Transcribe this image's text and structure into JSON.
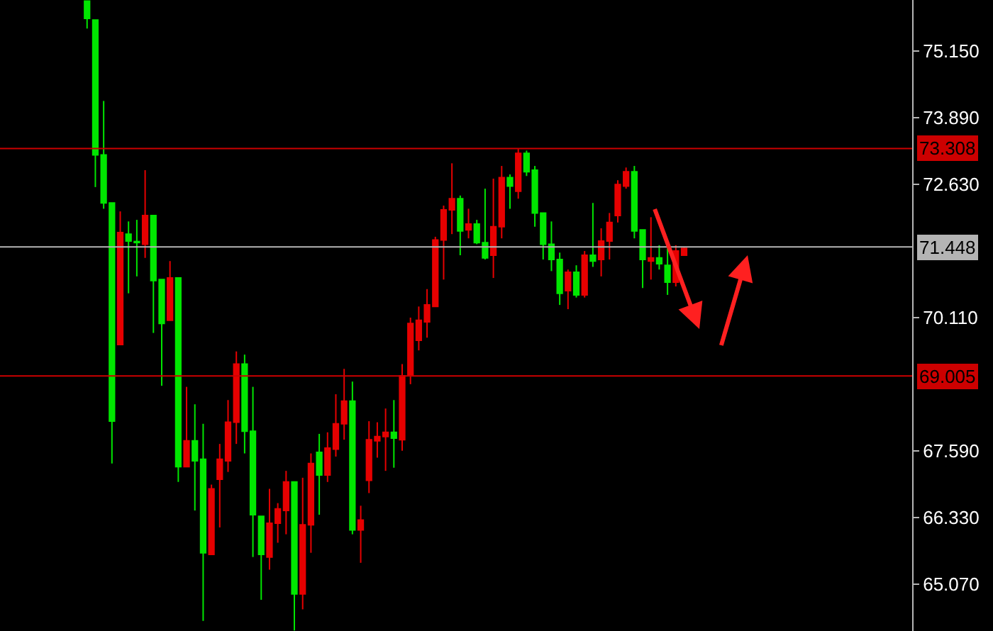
{
  "chart_data": {
    "type": "candlestick",
    "categories": [
      null,
      null,
      null,
      null,
      null,
      null,
      null,
      null,
      null,
      null,
      null,
      null,
      null,
      null,
      null,
      null,
      null,
      null,
      null,
      null,
      null,
      null,
      null,
      null,
      null,
      null,
      null,
      null,
      null,
      null,
      null,
      null,
      null,
      null,
      null,
      null,
      null,
      null,
      null,
      null,
      null,
      null,
      null,
      null,
      null,
      null,
      null,
      null,
      null,
      null,
      null,
      null,
      null,
      null,
      null,
      null,
      null,
      null,
      null,
      null,
      null,
      null,
      null,
      null,
      null,
      null,
      null,
      null,
      null,
      null,
      null,
      null,
      null,
      null,
      null,
      null,
      null,
      null,
      null,
      null,
      null,
      null,
      null,
      null,
      null,
      null,
      null,
      null,
      null,
      null,
      null,
      null,
      null,
      null,
      null,
      null,
      null,
      null,
      null,
      null,
      null,
      null,
      null,
      null,
      null,
      null,
      null,
      null,
      null,
      null
    ],
    "ohlc": [
      null,
      null,
      null,
      null,
      null,
      null,
      null,
      null,
      null,
      null,
      [
        76.1,
        76.1,
        75.58,
        75.77
      ],
      [
        75.74,
        75.74,
        72.58,
        73.19
      ],
      [
        73.19,
        74.21,
        72.17,
        72.28
      ],
      [
        72.28,
        72.28,
        67.35,
        68.15
      ],
      [
        69.6,
        72.12,
        69.6,
        71.72
      ],
      [
        71.69,
        71.93,
        70.57,
        71.56
      ],
      [
        71.55,
        71.96,
        70.89,
        71.53
      ],
      [
        71.5,
        72.9,
        71.24,
        72.04
      ],
      [
        72.04,
        72.04,
        69.82,
        70.81
      ],
      [
        70.83,
        70.83,
        68.82,
        70.0
      ],
      [
        70.06,
        71.18,
        70.06,
        70.86
      ],
      [
        70.86,
        70.86,
        67.0,
        67.29
      ],
      [
        67.29,
        68.8,
        67.29,
        67.78
      ],
      [
        67.78,
        68.47,
        66.46,
        67.4
      ],
      [
        67.43,
        68.1,
        64.37,
        65.66
      ],
      [
        65.63,
        66.95,
        65.63,
        66.87
      ],
      [
        67.05,
        67.72,
        66.14,
        67.43
      ],
      [
        67.4,
        68.55,
        67.19,
        68.13
      ],
      [
        68.13,
        69.47,
        67.72,
        69.23
      ],
      [
        69.23,
        69.41,
        67.54,
        67.96
      ],
      [
        67.96,
        68.8,
        65.58,
        66.38
      ],
      [
        66.35,
        66.35,
        64.77,
        65.63
      ],
      [
        65.58,
        66.87,
        65.34,
        66.22
      ],
      [
        66.22,
        66.6,
        65.85,
        66.49
      ],
      [
        66.46,
        67.21,
        66.01,
        67.0
      ],
      [
        67.0,
        67.0,
        64.19,
        64.88
      ],
      [
        64.88,
        67.08,
        64.59,
        66.19
      ],
      [
        66.19,
        67.54,
        65.66,
        67.35
      ],
      [
        67.56,
        67.91,
        66.38,
        67.13
      ],
      [
        67.13,
        67.94,
        67.0,
        67.64
      ],
      [
        67.62,
        68.66,
        67.48,
        68.1
      ],
      [
        68.1,
        69.14,
        67.8,
        68.53
      ],
      [
        68.53,
        68.9,
        66.01,
        66.09
      ],
      [
        66.09,
        66.55,
        65.47,
        66.28
      ],
      [
        67.03,
        68.15,
        66.79,
        67.8
      ],
      [
        67.78,
        68.13,
        67.46,
        67.86
      ],
      [
        67.86,
        68.39,
        67.21,
        67.94
      ],
      [
        67.94,
        68.55,
        67.27,
        67.83
      ],
      [
        67.8,
        69.23,
        67.59,
        69.01
      ],
      [
        69.01,
        70.11,
        68.85,
        70.0
      ],
      [
        69.68,
        70.32,
        69.49,
        70.06
      ],
      [
        70.03,
        70.65,
        69.73,
        70.35
      ],
      [
        70.32,
        71.64,
        70.32,
        71.58
      ],
      [
        71.58,
        72.23,
        70.83,
        72.15
      ],
      [
        72.15,
        73.03,
        71.69,
        72.36
      ],
      [
        72.36,
        72.42,
        71.29,
        71.75
      ],
      [
        71.77,
        72.17,
        71.61,
        71.88
      ],
      [
        71.88,
        71.96,
        71.5,
        71.53
      ],
      [
        71.53,
        72.55,
        71.21,
        71.24
      ],
      [
        71.29,
        72.74,
        70.86,
        71.83
      ],
      [
        71.83,
        72.98,
        71.61,
        72.76
      ],
      [
        72.76,
        72.82,
        72.17,
        72.6
      ],
      [
        72.5,
        73.3,
        72.36,
        73.22
      ],
      [
        73.22,
        73.27,
        72.79,
        72.87
      ],
      [
        72.9,
        72.98,
        71.83,
        72.09
      ],
      [
        72.09,
        72.09,
        71.21,
        71.5
      ],
      [
        71.5,
        71.93,
        70.99,
        71.21
      ],
      [
        71.21,
        71.34,
        70.35,
        70.57
      ],
      [
        70.62,
        71.02,
        70.27,
        70.97
      ],
      [
        70.97,
        71.1,
        70.49,
        70.54
      ],
      [
        70.54,
        71.37,
        70.49,
        71.29
      ],
      [
        71.29,
        72.28,
        71.07,
        71.18
      ],
      [
        71.21,
        71.8,
        70.89,
        71.56
      ],
      [
        71.56,
        72.09,
        71.21,
        71.91
      ],
      [
        72.04,
        72.71,
        71.91,
        72.63
      ],
      [
        72.6,
        72.95,
        72.55,
        72.87
      ],
      [
        72.87,
        72.98,
        71.61,
        71.75
      ],
      [
        71.77,
        71.77,
        70.67,
        71.21
      ],
      [
        71.18,
        72.01,
        70.83,
        71.24
      ],
      [
        71.24,
        71.48,
        71.02,
        71.13
      ],
      [
        71.1,
        71.42,
        70.54,
        70.78
      ],
      [
        70.78,
        71.48,
        70.7,
        71.37
      ],
      [
        71.29,
        71.45,
        71.29,
        71.42
      ],
      null,
      null,
      null,
      null,
      null,
      null,
      null,
      null,
      null,
      null,
      null,
      null,
      null,
      null,
      null,
      null,
      null,
      null,
      null,
      null,
      null,
      null,
      null,
      null,
      null,
      null,
      null
    ],
    "colors": [
      null,
      null,
      null,
      null,
      null,
      null,
      null,
      null,
      null,
      null,
      "#00e600",
      "#00e600",
      "#00e600",
      "#00e600",
      "#e60000",
      "#00e600",
      "#00e600",
      "#e60000",
      "#00e600",
      "#00e600",
      "#e60000",
      "#00e600",
      "#e60000",
      "#00e600",
      "#00e600",
      "#e60000",
      "#e60000",
      "#e60000",
      "#e60000",
      "#00e600",
      "#00e600",
      "#00e600",
      "#e60000",
      "#e60000",
      "#e60000",
      "#00e600",
      "#e60000",
      "#e60000",
      "#00e600",
      "#e60000",
      "#e60000",
      "#e60000",
      "#00e600",
      "#e60000",
      "#e60000",
      "#e60000",
      "#e60000",
      "#00e600",
      "#e60000",
      "#e60000",
      "#e60000",
      "#e60000",
      "#e60000",
      "#e60000",
      "#e60000",
      "#00e600",
      "#e60000",
      "#00e600",
      "#00e600",
      "#e60000",
      "#e60000",
      "#00e600",
      "#e60000",
      "#00e600",
      "#00e600",
      "#00e600",
      "#00e600",
      "#00e600",
      "#e60000",
      "#00e600",
      "#e60000",
      "#00e600",
      "#e60000",
      "#e60000",
      "#e60000",
      "#e60000",
      "#00e600",
      "#00e600",
      "#e60000",
      "#00e600",
      "#00e600",
      "#e60000",
      "#e60000",
      null,
      null,
      null,
      null,
      null,
      null,
      null,
      null,
      null,
      null,
      null,
      null,
      null,
      null,
      null,
      null,
      null,
      null,
      null,
      null,
      null,
      null,
      null,
      null,
      null,
      null,
      null
    ],
    "ylim": [
      64.18,
      76.12
    ],
    "yticks": [
      {
        "value": 75.15,
        "label": "75.150"
      },
      {
        "value": 73.89,
        "label": "73.890"
      },
      {
        "value": 72.63,
        "label": "72.630"
      },
      {
        "value": 70.11,
        "label": "70.110"
      },
      {
        "value": 67.59,
        "label": "67.590"
      },
      {
        "value": 66.33,
        "label": "66.330"
      },
      {
        "value": 65.07,
        "label": "65.070"
      }
    ],
    "ref_lines": [
      {
        "axis": "y",
        "value": 73.308,
        "label": "73.308",
        "color": "#cc0000"
      },
      {
        "axis": "y",
        "value": 71.448,
        "label": "71.448",
        "color": "#b4b4b4"
      },
      {
        "axis": "y",
        "value": 69.005,
        "label": "69.005",
        "color": "#cc0000"
      }
    ],
    "grid": false
  }
}
